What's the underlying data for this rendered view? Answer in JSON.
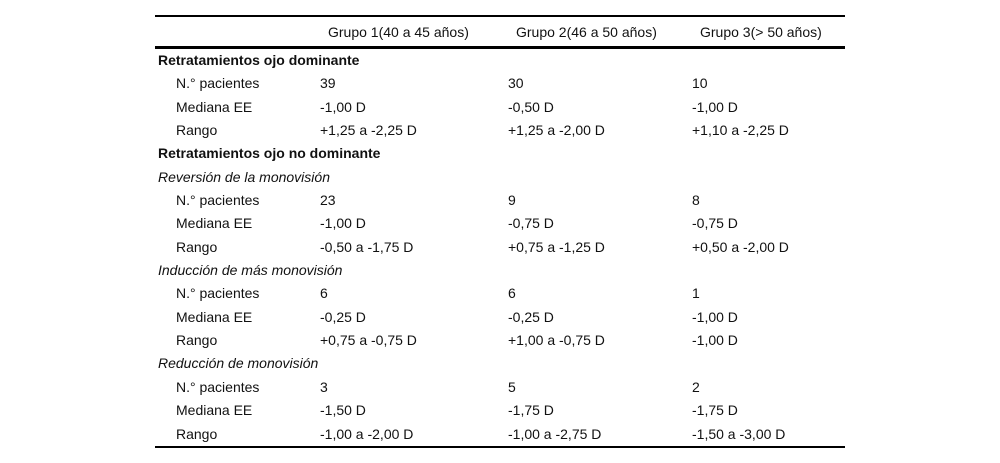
{
  "table": {
    "header": {
      "col_label": "",
      "col_group1": "Grupo 1(40 a 45 años)",
      "col_group2": "Grupo 2(46 a 50 años)",
      "col_group3": "Grupo 3(> 50 años)"
    },
    "rows": [
      {
        "type": "section",
        "label": "Retratamientos ojo dominante",
        "g1": "",
        "g2": "",
        "g3": ""
      },
      {
        "type": "data",
        "label": "N.° pacientes",
        "g1": "39",
        "g2": "30",
        "g3": "10"
      },
      {
        "type": "data",
        "label": "Mediana EE",
        "g1": "-1,00 D",
        "g2": "-0,50 D",
        "g3": "-1,00 D"
      },
      {
        "type": "data",
        "label": "Rango",
        "g1": "+1,25 a -2,25 D",
        "g2": "+1,25 a -2,00 D",
        "g3": "+1,10 a -2,25 D"
      },
      {
        "type": "section",
        "label": "Retratamientos ojo no dominante",
        "g1": "",
        "g2": "",
        "g3": ""
      },
      {
        "type": "subsection",
        "label": "Reversión de la monovisión",
        "g1": "",
        "g2": "",
        "g3": ""
      },
      {
        "type": "data",
        "label": "N.° pacientes",
        "g1": "23",
        "g2": "9",
        "g3": "8"
      },
      {
        "type": "data",
        "label": "Mediana EE",
        "g1": "-1,00 D",
        "g2": "-0,75 D",
        "g3": "-0,75 D"
      },
      {
        "type": "data",
        "label": "Rango",
        "g1": "-0,50 a -1,75 D",
        "g2": "+0,75 a -1,25 D",
        "g3": "+0,50 a -2,00 D"
      },
      {
        "type": "subsection",
        "label": "Inducción de más monovisión",
        "g1": "",
        "g2": "",
        "g3": ""
      },
      {
        "type": "data",
        "label": "N.° pacientes",
        "g1": "6",
        "g2": "6",
        "g3": "1"
      },
      {
        "type": "data",
        "label": "Mediana EE",
        "g1": "-0,25 D",
        "g2": "-0,25 D",
        "g3": "-1,00 D"
      },
      {
        "type": "data",
        "label": "Rango",
        "g1": "+0,75 a -0,75 D",
        "g2": "+1,00 a -0,75 D",
        "g3": "-1,00 D"
      },
      {
        "type": "subsection",
        "label": "Reducción de monovisión",
        "g1": "",
        "g2": "",
        "g3": ""
      },
      {
        "type": "data",
        "label": "N.° pacientes",
        "g1": "3",
        "g2": "5",
        "g3": "2"
      },
      {
        "type": "data",
        "label": "Mediana EE",
        "g1": "-1,50 D",
        "g2": "-1,75 D",
        "g3": "-1,75 D"
      },
      {
        "type": "data",
        "label": "Rango",
        "g1": "-1,00 a -2,00 D",
        "g2": "-1,00 a -2,75 D",
        "g3": "-1,50 a -3,00 D"
      }
    ]
  },
  "chart_data": {
    "type": "table",
    "title": "",
    "columns": [
      "",
      "Grupo 1(40 a 45 años)",
      "Grupo 2(46 a 50 años)",
      "Grupo 3(> 50 años)"
    ],
    "sections": [
      {
        "section": "Retratamientos ojo dominante",
        "n_pacientes": [
          39,
          30,
          10
        ],
        "mediana_ee": [
          "-1,00 D",
          "-0,50 D",
          "-1,00 D"
        ],
        "rango": [
          "+1,25 a -2,25 D",
          "+1,25 a -2,00 D",
          "+1,10 a -2,25 D"
        ]
      },
      {
        "section": "Retratamientos ojo no dominante — Reversión de la monovisión",
        "n_pacientes": [
          23,
          9,
          8
        ],
        "mediana_ee": [
          "-1,00 D",
          "-0,75 D",
          "-0,75 D"
        ],
        "rango": [
          "-0,50 a -1,75 D",
          "+0,75 a -1,25 D",
          "+0,50 a -2,00 D"
        ]
      },
      {
        "section": "Retratamientos ojo no dominante — Inducción de más monovisión",
        "n_pacientes": [
          6,
          6,
          1
        ],
        "mediana_ee": [
          "-0,25 D",
          "-0,25 D",
          "-1,00 D"
        ],
        "rango": [
          "+0,75 a -0,75 D",
          "+1,00 a -0,75 D",
          "-1,00 D"
        ]
      },
      {
        "section": "Retratamientos ojo no dominante — Reducción de monovisión",
        "n_pacientes": [
          3,
          5,
          2
        ],
        "mediana_ee": [
          "-1,50 D",
          "-1,75 D",
          "-1,75 D"
        ],
        "rango": [
          "-1,00 a -2,00 D",
          "-1,00 a -2,75 D",
          "-1,50 a -3,00 D"
        ]
      }
    ]
  }
}
